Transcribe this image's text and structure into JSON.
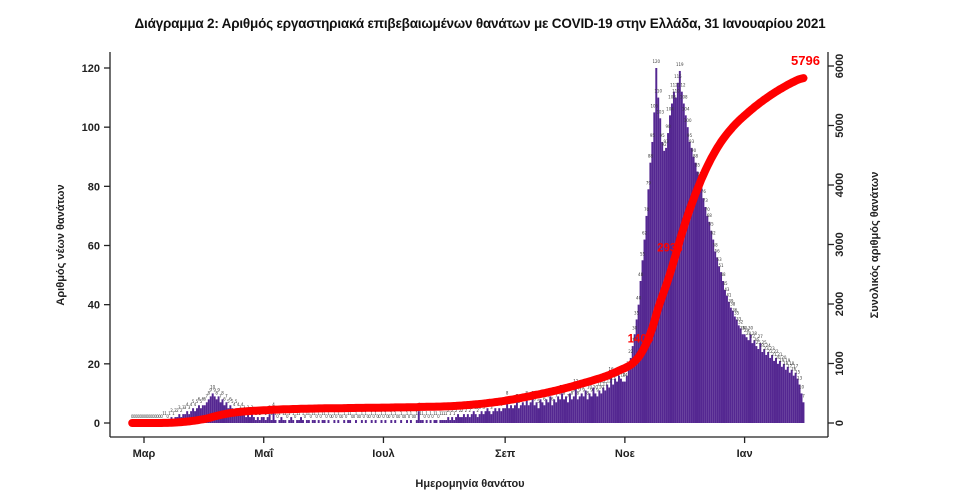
{
  "title": "Διάγραμμα 2: Αριθμός εργαστηριακά επιβεβαιωμένων θανάτων με COVID-19 στην Ελλάδα, 31 Ιανουαρίου 2021",
  "colors": {
    "bar": "#542791",
    "line": "#ff0000",
    "axis": "#222222",
    "bar_label": "#3a3a3a",
    "annotation": "#ff0000",
    "background": "#ffffff"
  },
  "chart_data": {
    "type": "bar",
    "title": "Διάγραμμα 2: Αριθμός εργαστηριακά επιβεβαιωμένων θανάτων με COVID-19 στην Ελλάδα, 31 Ιανουαρίου 2021",
    "x_axis": {
      "label": "Ημερομηνία θανάτου",
      "tick_labels": [
        "Μαρ",
        "Μαΐ",
        "Ιουλ",
        "Σεπ",
        "Νοε",
        "Ιαν"
      ],
      "tick_day_indices": [
        6,
        67,
        128,
        190,
        251,
        312
      ],
      "start_date": "2020-02-24",
      "end_date": "2021-01-31"
    },
    "y_left": {
      "label": "Αριθμός νέων θανάτων",
      "ticks": [
        0,
        20,
        40,
        60,
        80,
        100,
        120
      ],
      "range": [
        0,
        120
      ],
      "grid": false
    },
    "y_right": {
      "label": "Συνολικός αριθμός θανάτων",
      "ticks": [
        0,
        1000,
        2000,
        3000,
        4000,
        5000,
        6000
      ],
      "range": [
        0,
        6000
      ],
      "grid": false
    },
    "series": [
      {
        "name": "daily-deaths-bars",
        "type": "bar",
        "color": "#542791",
        "values": [
          0,
          0,
          0,
          0,
          0,
          0,
          0,
          0,
          0,
          0,
          0,
          0,
          0,
          0,
          0,
          0,
          1,
          1,
          0,
          1,
          2,
          1,
          2,
          2,
          3,
          2,
          3,
          3,
          4,
          3,
          4,
          5,
          4,
          5,
          6,
          5,
          6,
          6,
          7,
          8,
          9,
          10,
          9,
          8,
          9,
          7,
          8,
          6,
          7,
          5,
          6,
          5,
          4,
          5,
          4,
          3,
          4,
          3,
          2,
          3,
          2,
          3,
          2,
          1,
          2,
          1,
          2,
          2,
          1,
          2,
          3,
          1,
          4,
          1,
          0,
          1,
          2,
          1,
          1,
          0,
          1,
          2,
          1,
          0,
          1,
          1,
          2,
          1,
          0,
          1,
          1,
          0,
          1,
          1,
          0,
          1,
          0,
          1,
          1,
          0,
          1,
          0,
          0,
          1,
          0,
          1,
          0,
          0,
          1,
          0,
          1,
          1,
          0,
          0,
          1,
          0,
          0,
          1,
          0,
          1,
          0,
          0,
          1,
          0,
          1,
          0,
          0,
          1,
          0,
          1,
          0,
          0,
          1,
          0,
          1,
          0,
          0,
          1,
          0,
          0,
          1,
          0,
          1,
          0,
          0,
          1,
          4,
          1,
          1,
          0,
          1,
          0,
          1,
          0,
          1,
          1,
          0,
          1,
          1,
          1,
          1,
          2,
          1,
          2,
          1,
          2,
          3,
          2,
          2,
          3,
          2,
          3,
          2,
          3,
          4,
          3,
          2,
          3,
          4,
          3,
          4,
          5,
          4,
          3,
          4,
          5,
          4,
          5,
          4,
          5,
          5,
          8,
          5,
          6,
          5,
          6,
          7,
          5,
          6,
          7,
          6,
          8,
          6,
          7,
          8,
          6,
          7,
          5,
          8,
          7,
          6,
          8,
          7,
          9,
          6,
          8,
          7,
          9,
          8,
          10,
          8,
          9,
          7,
          10,
          8,
          9,
          12,
          8,
          9,
          10,
          9,
          11,
          8,
          10,
          9,
          12,
          10,
          9,
          11,
          10,
          12,
          11,
          13,
          12,
          16,
          13,
          15,
          14,
          16,
          15,
          14,
          14,
          16,
          18,
          22,
          26,
          30,
          35,
          40,
          48,
          55,
          62,
          70,
          79,
          88,
          95,
          105,
          120,
          110,
          103,
          95,
          92,
          93,
          98,
          104,
          108,
          112,
          110,
          115,
          119,
          112,
          108,
          104,
          100,
          95,
          93,
          90,
          88,
          85,
          82,
          80,
          76,
          73,
          70,
          68,
          65,
          62,
          58,
          56,
          53,
          51,
          48,
          45,
          43,
          41,
          39,
          38,
          36,
          35,
          33,
          32,
          30,
          30,
          29,
          28,
          30,
          27,
          28,
          26,
          25,
          27,
          24,
          25,
          23,
          24,
          22,
          23,
          21,
          22,
          20,
          21,
          19,
          20,
          18,
          19,
          17,
          18,
          16,
          17,
          15,
          13,
          10,
          7
        ]
      },
      {
        "name": "cumulative-deaths-line",
        "type": "line",
        "color": "#ff0000",
        "final_total": 5796
      }
    ],
    "annotations": [
      {
        "text": "1404",
        "day_index": 263,
        "placement": "on-line",
        "color": "#ff0000"
      },
      {
        "text": "2938",
        "day_index": 278,
        "placement": "on-line",
        "color": "#ff0000"
      },
      {
        "text": "5796",
        "day_index": 342,
        "placement": "above-end",
        "color": "#ff0000"
      }
    ],
    "legend": "none"
  }
}
